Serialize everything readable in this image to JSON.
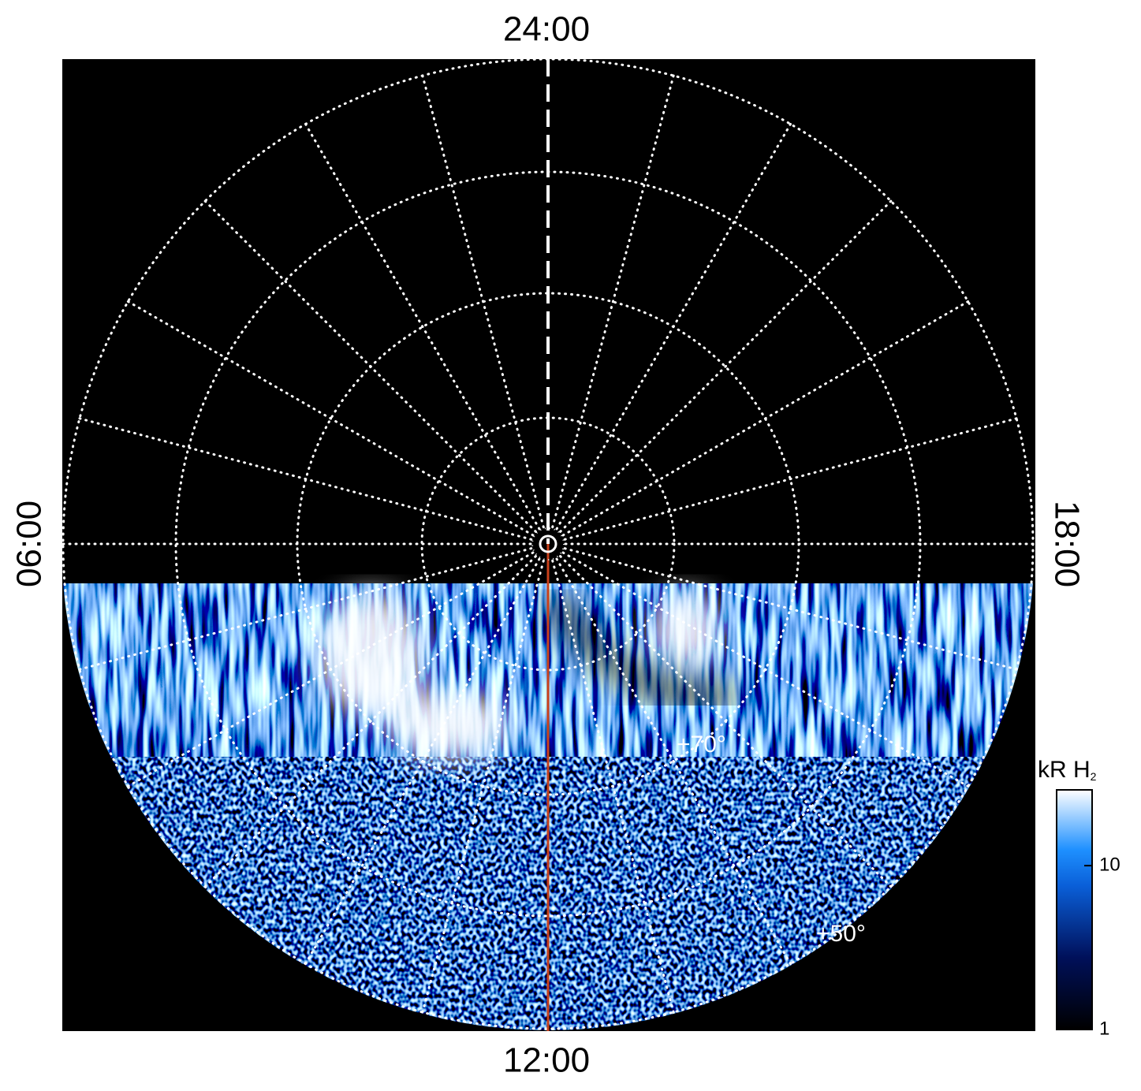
{
  "map": {
    "labels": {
      "top": "24:00",
      "bottom": "12:00",
      "left": "06:00",
      "right": "18:00"
    },
    "latitude_labels": [
      "+70°",
      "+50°"
    ],
    "colorbar": {
      "title": "kR H",
      "title_subscript": "2",
      "scale": "log",
      "lim": [
        1,
        29
      ],
      "ticks": [
        1,
        10
      ]
    }
  }
}
